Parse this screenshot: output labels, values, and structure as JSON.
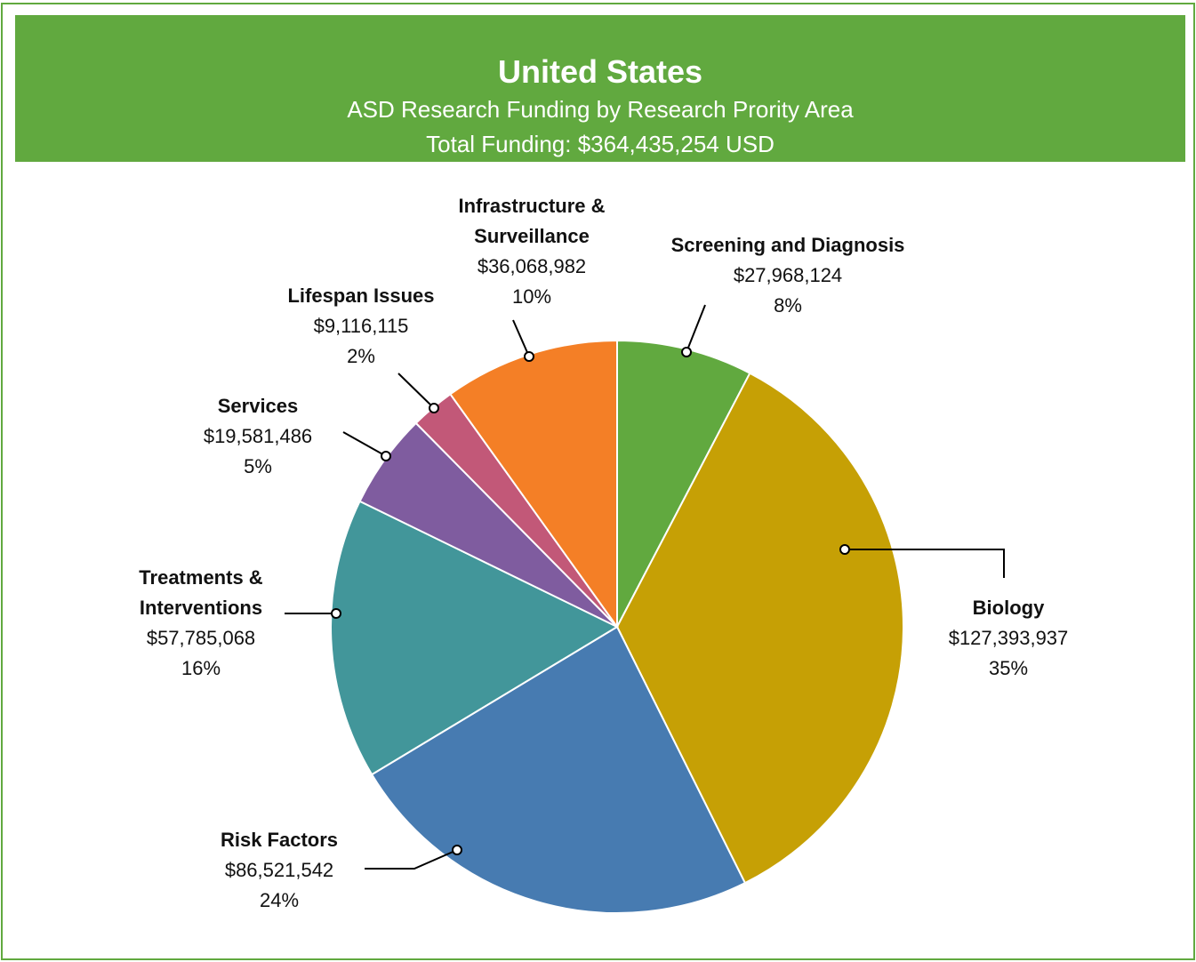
{
  "chart_data": {
    "type": "pie",
    "title": "United States",
    "subtitle": "ASD Research Funding by Research Prority Area",
    "total_label": "Total Funding: $364,435,254 USD",
    "categories": [
      "Screening and Diagnosis",
      "Biology",
      "Risk Factors",
      "Treatments & Interventions",
      "Services",
      "Lifespan Issues",
      "Infrastructure & Surveillance"
    ],
    "values": [
      27968124,
      127393937,
      86521542,
      57785068,
      19581486,
      9116115,
      36068982
    ],
    "value_labels": [
      "$27,968,124",
      "$127,393,937",
      "$86,521,542",
      "$57,785,068",
      "$19,581,486",
      "$9,116,115",
      "$36,068,982"
    ],
    "percent_labels": [
      "8%",
      "35%",
      "24%",
      "16%",
      "5%",
      "2%",
      "10%"
    ],
    "colors": [
      "#61a93f",
      "#c6a005",
      "#477bb1",
      "#42969a",
      "#7f5c9f",
      "#c25878",
      "#f47f26"
    ]
  }
}
